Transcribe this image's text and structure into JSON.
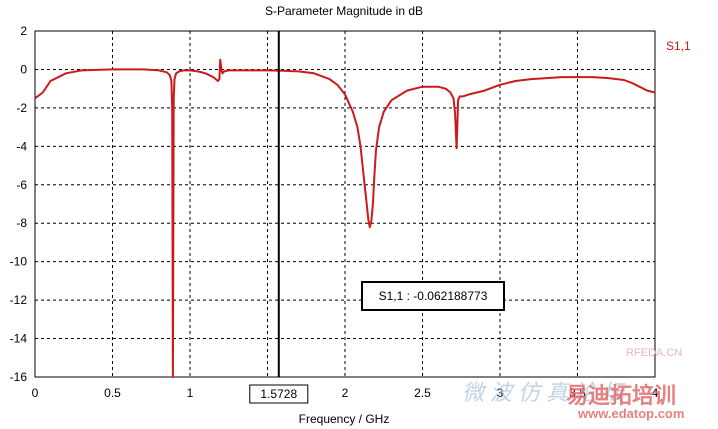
{
  "chart_data": {
    "type": "line",
    "title": "S-Parameter Magnitude in dB",
    "xlabel": "Frequency / GHz",
    "ylabel": "",
    "xlim": [
      0,
      4
    ],
    "ylim": [
      -16,
      2
    ],
    "grid": true,
    "x_ticks": [
      "0",
      "0.5",
      "1",
      "",
      "2",
      "2.5",
      "3",
      "3.5",
      "4"
    ],
    "y_ticks": [
      "2",
      "0",
      "-2",
      "-4",
      "-6",
      "-8",
      "-10",
      "-12",
      "-14",
      "-16"
    ],
    "legend_position": "top-right",
    "series": [
      {
        "name": "S1,1",
        "color": "#cc1a1a",
        "x": [
          0,
          0.05,
          0.1,
          0.2,
          0.3,
          0.5,
          0.7,
          0.8,
          0.85,
          0.87,
          0.88,
          0.885,
          0.89,
          0.895,
          0.9,
          0.91,
          0.93,
          0.96,
          1.0,
          1.05,
          1.1,
          1.15,
          1.18,
          1.19,
          1.195,
          1.2,
          1.205,
          1.21,
          1.22,
          1.25,
          1.3,
          1.4,
          1.5,
          1.5728,
          1.6,
          1.7,
          1.8,
          1.9,
          1.95,
          2.0,
          2.05,
          2.08,
          2.1,
          2.12,
          2.14,
          2.15,
          2.16,
          2.17,
          2.18,
          2.19,
          2.2,
          2.22,
          2.25,
          2.3,
          2.4,
          2.5,
          2.6,
          2.65,
          2.68,
          2.7,
          2.71,
          2.72,
          2.725,
          2.73,
          2.74,
          2.76,
          2.8,
          2.9,
          3.0,
          3.1,
          3.2,
          3.3,
          3.4,
          3.5,
          3.6,
          3.7,
          3.8,
          3.85,
          3.9,
          3.95,
          4.0
        ],
        "y": [
          -1.5,
          -1.2,
          -0.6,
          -0.2,
          -0.05,
          0.0,
          0.0,
          -0.05,
          -0.15,
          -0.3,
          -0.6,
          -2.0,
          -16,
          -1.5,
          -0.5,
          -0.2,
          -0.1,
          -0.05,
          -0.05,
          -0.1,
          -0.2,
          -0.4,
          -0.6,
          -0.5,
          0.5,
          0.2,
          -0.1,
          -0.2,
          -0.1,
          -0.05,
          -0.05,
          -0.05,
          -0.05,
          -0.062188773,
          -0.07,
          -0.1,
          -0.2,
          -0.5,
          -0.8,
          -1.3,
          -2.2,
          -3.0,
          -4.0,
          -5.5,
          -7.0,
          -7.8,
          -8.2,
          -7.9,
          -7.0,
          -5.5,
          -4.2,
          -3.0,
          -2.2,
          -1.6,
          -1.1,
          -0.9,
          -0.9,
          -1.0,
          -1.2,
          -1.5,
          -2.3,
          -4.1,
          -2.8,
          -1.6,
          -1.4,
          -1.4,
          -1.3,
          -1.1,
          -0.8,
          -0.6,
          -0.5,
          -0.45,
          -0.4,
          -0.4,
          -0.4,
          -0.45,
          -0.55,
          -0.7,
          -0.9,
          -1.1,
          -1.2
        ]
      }
    ],
    "cursor": {
      "x": 1.5728,
      "label": "1.5728"
    },
    "marker_box": {
      "text": "S1,1 : -0.062188773"
    }
  },
  "watermarks": {
    "site_top": "RFEDA.CN",
    "cn_blue": "微波仿真论坛",
    "brand": "易迪拓培训",
    "url": "www.edatop.com"
  }
}
